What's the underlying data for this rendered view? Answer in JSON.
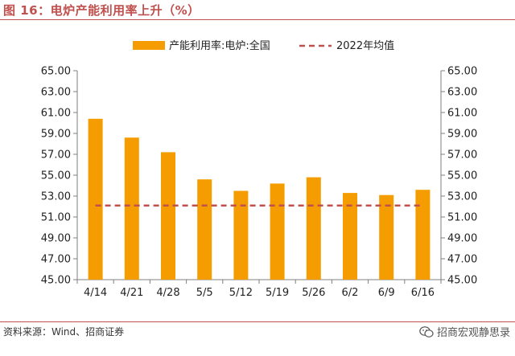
{
  "header": {
    "title": "图 16：电炉产能利用率上升（%）"
  },
  "footer": {
    "source": "资料来源：Wind、招商证券",
    "brand": "招商宏观静思录"
  },
  "colors": {
    "bar": "#f59c00",
    "avg_line": "#c0504d",
    "title": "#c0504d"
  },
  "chart_data": {
    "type": "bar",
    "categories": [
      "4/14",
      "4/21",
      "4/28",
      "5/5",
      "5/12",
      "5/19",
      "5/26",
      "6/2",
      "6/9",
      "6/16"
    ],
    "series": [
      {
        "name": "产能利用率:电炉:全国",
        "type": "bar",
        "values": [
          60.4,
          58.6,
          57.2,
          54.6,
          53.5,
          54.2,
          54.8,
          53.3,
          53.1,
          53.6
        ]
      },
      {
        "name": "2022年均值",
        "type": "line",
        "style": "dashed",
        "values": [
          52.1,
          52.1,
          52.1,
          52.1,
          52.1,
          52.1,
          52.1,
          52.1,
          52.1,
          52.1
        ]
      }
    ],
    "ylim": [
      45,
      65
    ],
    "yticks": [
      "45.00",
      "47.00",
      "49.00",
      "51.00",
      "53.00",
      "55.00",
      "57.00",
      "59.00",
      "61.00",
      "63.00",
      "65.00"
    ],
    "y2ticks": [
      "45.00",
      "47.00",
      "49.00",
      "51.00",
      "53.00",
      "55.00",
      "57.00",
      "59.00",
      "61.00",
      "63.00",
      "65.00"
    ],
    "legend_position": "top",
    "grid": false
  }
}
